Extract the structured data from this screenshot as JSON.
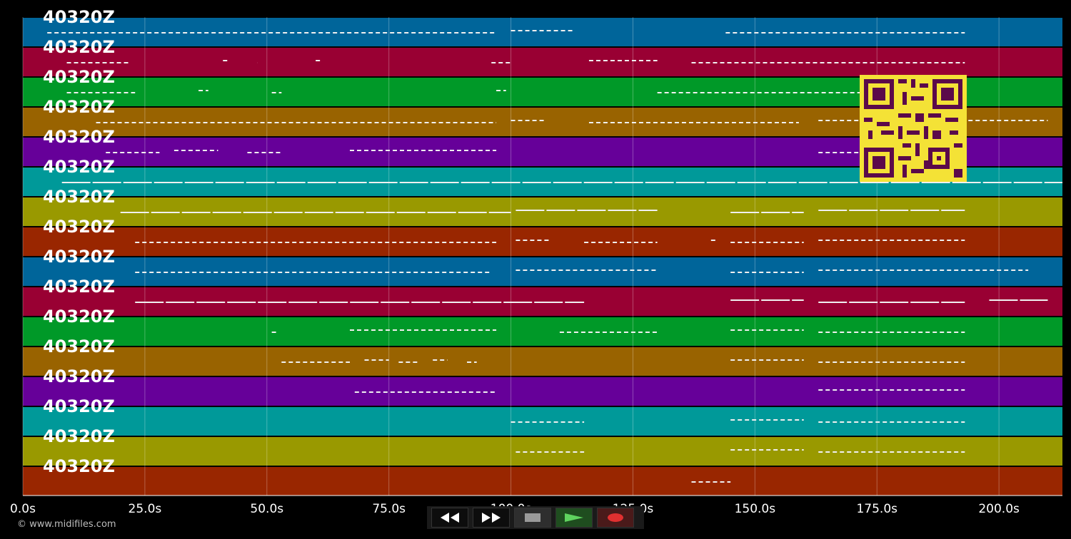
{
  "tracks": [
    {
      "label": "40320Z",
      "color": "#00659a"
    },
    {
      "label": "40320Z",
      "color": "#990033"
    },
    {
      "label": "40320Z",
      "color": "#009928"
    },
    {
      "label": "40320Z",
      "color": "#996300"
    },
    {
      "label": "40320Z",
      "color": "#660099"
    },
    {
      "label": "40320Z",
      "color": "#009999"
    },
    {
      "label": "40320Z",
      "color": "#999900"
    },
    {
      "label": "40320Z",
      "color": "#992600"
    },
    {
      "label": "40320Z",
      "color": "#00659a"
    },
    {
      "label": "40320Z",
      "color": "#990033"
    },
    {
      "label": "40320Z",
      "color": "#009928"
    },
    {
      "label": "40320Z",
      "color": "#996300"
    },
    {
      "label": "40320Z",
      "color": "#660099"
    },
    {
      "label": "40320Z",
      "color": "#009999"
    },
    {
      "label": "40320Z",
      "color": "#999900"
    },
    {
      "label": "40320Z",
      "color": "#992600"
    }
  ],
  "timeline": {
    "max_seconds": 213,
    "ticks": [
      "0.0s",
      "25.0s",
      "50.0s",
      "75.0s",
      "100.0s",
      "125.0s",
      "150.0s",
      "175.0s",
      "200.0s"
    ],
    "tick_values": [
      0,
      25,
      50,
      75,
      100,
      125,
      150,
      175,
      200
    ]
  },
  "note_segments": [
    [
      [
        5,
        97
      ],
      [
        100,
        113
      ],
      [
        144,
        193
      ]
    ],
    [
      [
        9,
        22
      ],
      [
        41,
        42
      ],
      [
        48,
        48
      ],
      [
        60,
        61
      ],
      [
        96,
        100
      ],
      [
        116,
        130
      ],
      [
        137,
        193
      ]
    ],
    [
      [
        9,
        23
      ],
      [
        36,
        38
      ],
      [
        51,
        53
      ],
      [
        97,
        99
      ],
      [
        130,
        193
      ]
    ],
    [
      [
        15,
        97
      ],
      [
        100,
        107
      ],
      [
        116,
        159
      ],
      [
        163,
        210
      ]
    ],
    [
      [
        17,
        28
      ],
      [
        31,
        40
      ],
      [
        46,
        53
      ],
      [
        67,
        97
      ],
      [
        163,
        193
      ]
    ],
    [
      [
        8,
        213
      ]
    ],
    [
      [
        20,
        100
      ],
      [
        101,
        130
      ],
      [
        145,
        160
      ],
      [
        163,
        193
      ]
    ],
    [
      [
        23,
        97
      ],
      [
        101,
        108
      ],
      [
        115,
        130
      ],
      [
        141,
        142
      ],
      [
        145,
        160
      ],
      [
        163,
        193
      ]
    ],
    [
      [
        23,
        96
      ],
      [
        101,
        130
      ],
      [
        145,
        160
      ],
      [
        163,
        206
      ]
    ],
    [
      [
        23,
        115
      ],
      [
        145,
        160
      ],
      [
        163,
        193
      ],
      [
        198,
        210
      ]
    ],
    [
      [
        51,
        52
      ],
      [
        67,
        97
      ],
      [
        110,
        130
      ],
      [
        145,
        160
      ],
      [
        163,
        193
      ]
    ],
    [
      [
        53,
        67
      ],
      [
        70,
        75
      ],
      [
        77,
        81
      ],
      [
        84,
        87
      ],
      [
        91,
        93
      ],
      [
        145,
        160
      ],
      [
        163,
        193
      ]
    ],
    [
      [
        68,
        97
      ],
      [
        163,
        193
      ]
    ],
    [
      [
        100,
        115
      ],
      [
        145,
        160
      ],
      [
        163,
        193
      ]
    ],
    [
      [
        101,
        115
      ],
      [
        145,
        160
      ],
      [
        163,
        193
      ]
    ],
    [
      [
        137,
        145
      ]
    ]
  ],
  "footer": {
    "copyright": "© www.midifiles.com"
  },
  "transport": {
    "rewind_icon": "rewind-icon",
    "forward_icon": "fast-forward-icon",
    "stop_icon": "stop-icon",
    "play_icon": "play-icon",
    "record_icon": "record-icon"
  }
}
